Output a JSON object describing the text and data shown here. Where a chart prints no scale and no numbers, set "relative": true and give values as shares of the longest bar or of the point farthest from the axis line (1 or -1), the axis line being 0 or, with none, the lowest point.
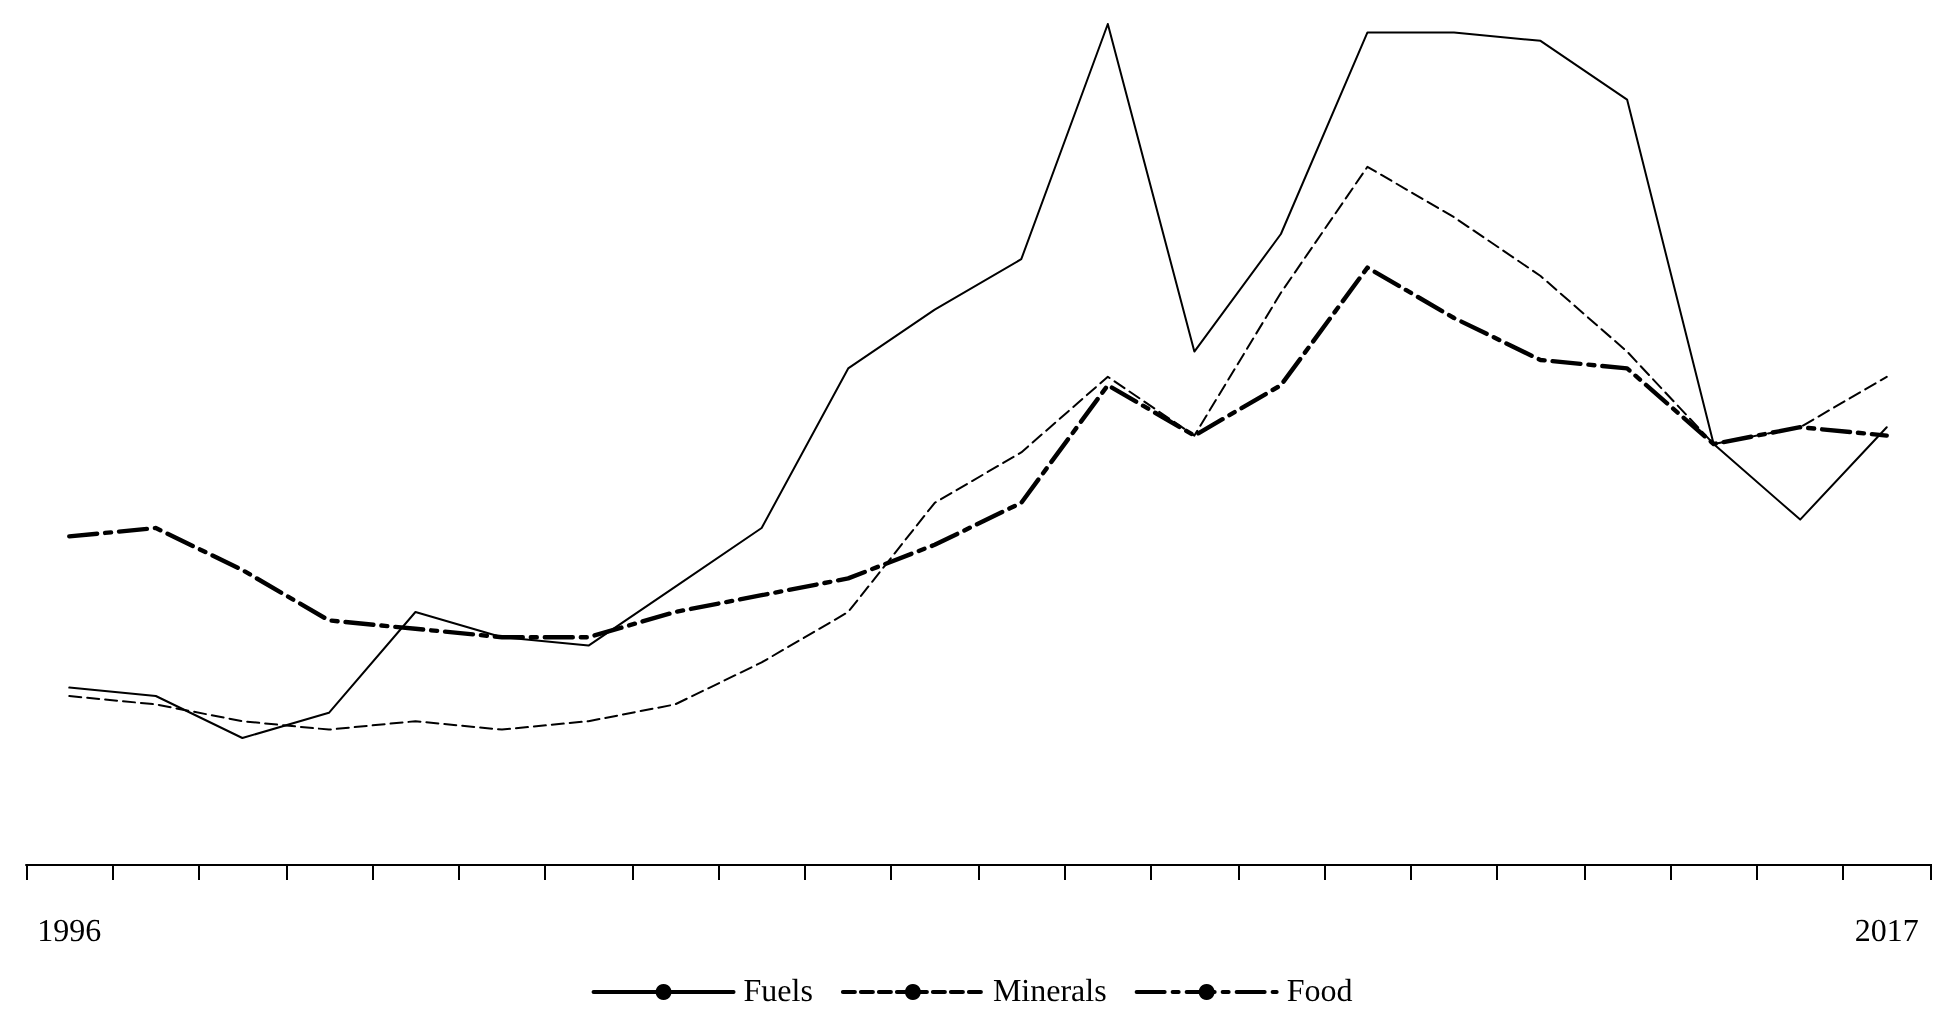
{
  "chart_data": {
    "type": "line",
    "relative": true,
    "legend": "bottom",
    "marker": "none",
    "grid": false,
    "categories": [
      "1996",
      null,
      null,
      null,
      null,
      null,
      null,
      null,
      null,
      null,
      null,
      null,
      null,
      null,
      null,
      null,
      null,
      null,
      null,
      null,
      null,
      "2017"
    ],
    "series": [
      {
        "name": "Fuels",
        "color": "#000000",
        "line_style": "solid",
        "values": [
          0.21,
          0.2,
          0.15,
          0.18,
          0.3,
          0.27,
          0.26,
          0.33,
          0.4,
          0.59,
          0.66,
          0.72,
          1,
          0.61,
          0.75,
          0.99,
          0.99,
          0.98,
          0.91,
          0.5,
          0.41,
          0.52
        ]
      },
      {
        "name": "Minerals",
        "color": "#000000",
        "line_style": "dashed",
        "values": [
          0.2,
          0.19,
          0.17,
          0.16,
          0.17,
          0.16,
          0.17,
          0.19,
          0.24,
          0.3,
          0.43,
          0.49,
          0.58,
          0.51,
          0.68,
          0.83,
          0.77,
          0.7,
          0.61,
          0.5,
          0.52,
          0.58
        ]
      },
      {
        "name": "Food",
        "color": "#000000",
        "line_style": "dashdot",
        "values": [
          0.39,
          0.4,
          0.35,
          0.29,
          0.28,
          0.27,
          0.27,
          0.3,
          0.32,
          0.34,
          0.38,
          0.43,
          0.57,
          0.51,
          0.57,
          0.71,
          0.65,
          0.6,
          0.59,
          0.5,
          0.52,
          0.51
        ]
      }
    ]
  }
}
